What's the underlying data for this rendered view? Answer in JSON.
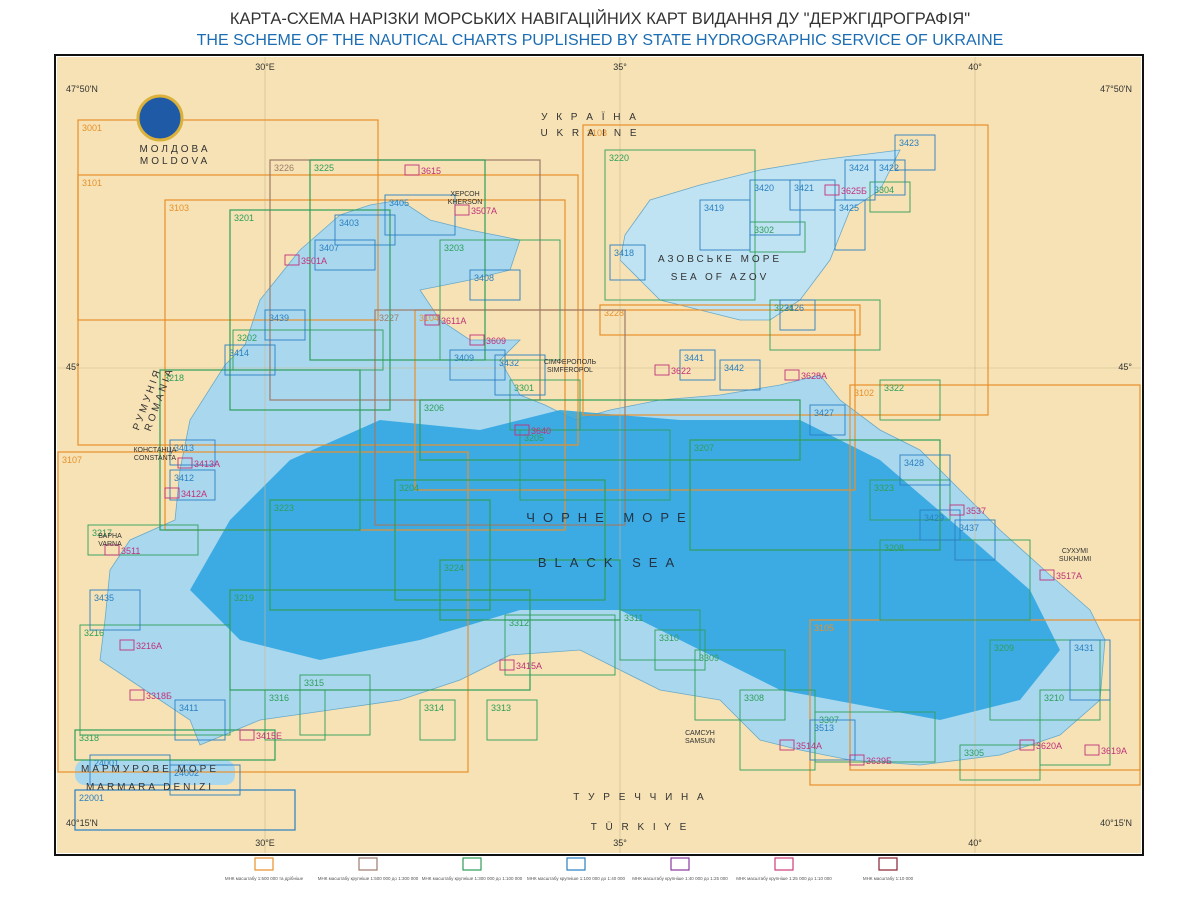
{
  "header": {
    "title_uk": "КАРТА-СХЕМА НАРІЗКИ МОРСЬКИХ НАВІГАЦІЙНИХ КАРТ ВИДАННЯ ДУ \"ДЕРЖГІДРОГРАФІЯ\"",
    "title_en": "THE SCHEME OF THE NAUTICAL CHARTS PUPLISHED BY STATE HYDROGRAPHIC SERVICE OF UKRAINE"
  },
  "map": {
    "longitudes_top": [
      "30°E",
      "35°",
      "40°"
    ],
    "longitudes_bottom": [
      "30°E",
      "35°",
      "40°"
    ],
    "latitudes_left": [
      "47°50'N",
      "45°",
      "40°15'N"
    ],
    "latitudes_right": [
      "47°50'N",
      "45°",
      "40°15'N"
    ],
    "places": [
      "У К Р А Ї Н А",
      "U K R A I N E",
      "МОЛДОВА",
      "MOLDOVA",
      "РУМУНІЯ",
      "ROMANIA",
      "ЧОРНЕ МОРЕ",
      "BLACK SEA",
      "АЗОВСЬКЕ МОРЕ",
      "SEA OF AZOV",
      "Т У Р Е Ч Ч И Н А",
      "T Ü R K I Y E",
      "МАРМУРОВЕ МОРЕ",
      "MARMARA DENIZI",
      "СІМФЕРОПОЛЬ",
      "SIMFEROPOL",
      "ХЕРСОН",
      "KHERSON",
      "САМСУН",
      "SAMSUN",
      "КОНСТАНЦА",
      "CONSTANTA",
      "ВАРНА",
      "VARNA",
      "СУХУМІ",
      "SUKHUMI"
    ],
    "charts": [
      {
        "number": "3001",
        "color": "#e8902a"
      },
      {
        "number": "3101",
        "color": "#e8902a"
      },
      {
        "number": "3103",
        "color": "#e8902a"
      },
      {
        "number": "3107",
        "color": "#e8902a"
      },
      {
        "number": "3108",
        "color": "#e8902a"
      },
      {
        "number": "3102",
        "color": "#e8902a"
      },
      {
        "number": "3105",
        "color": "#e8902a"
      },
      {
        "number": "3104",
        "color": "#e8902a"
      },
      {
        "number": "3228",
        "color": "#e8902a"
      },
      {
        "number": "3226",
        "color": "#9c7b6a"
      },
      {
        "number": "3227",
        "color": "#9c7b6a"
      },
      {
        "number": "3225",
        "color": "#2e9e5a"
      },
      {
        "number": "3201",
        "color": "#2e9e5a"
      },
      {
        "number": "3202",
        "color": "#2e9e5a"
      },
      {
        "number": "3203",
        "color": "#2e9e5a"
      },
      {
        "number": "3218",
        "color": "#2e9e5a"
      },
      {
        "number": "3220",
        "color": "#2e9e5a"
      },
      {
        "number": "3221",
        "color": "#2e9e5a"
      },
      {
        "number": "3206",
        "color": "#2e9e5a"
      },
      {
        "number": "3207",
        "color": "#2e9e5a"
      },
      {
        "number": "3204",
        "color": "#2e9e5a"
      },
      {
        "number": "3205",
        "color": "#2e9e5a"
      },
      {
        "number": "3223",
        "color": "#2e9e5a"
      },
      {
        "number": "3224",
        "color": "#2e9e5a"
      },
      {
        "number": "3208",
        "color": "#2e9e5a"
      },
      {
        "number": "3219",
        "color": "#2e9e5a"
      },
      {
        "number": "3217",
        "color": "#2e9e5a"
      },
      {
        "number": "3216",
        "color": "#2e9e5a"
      },
      {
        "number": "3318",
        "color": "#2e9e5a"
      },
      {
        "number": "3312",
        "color": "#2e9e5a"
      },
      {
        "number": "3311",
        "color": "#2e9e5a"
      },
      {
        "number": "3309",
        "color": "#2e9e5a"
      },
      {
        "number": "3308",
        "color": "#2e9e5a"
      },
      {
        "number": "3307",
        "color": "#2e9e5a"
      },
      {
        "number": "3209",
        "color": "#2e9e5a"
      },
      {
        "number": "3210",
        "color": "#2e9e5a"
      },
      {
        "number": "3305",
        "color": "#2e9e5a"
      },
      {
        "number": "3322",
        "color": "#2e9e5a"
      },
      {
        "number": "3323",
        "color": "#2e9e5a"
      },
      {
        "number": "3301",
        "color": "#2e9e5a"
      },
      {
        "number": "3302",
        "color": "#2e9e5a"
      },
      {
        "number": "3304",
        "color": "#2e9e5a"
      },
      {
        "number": "3313",
        "color": "#2e9e5a"
      },
      {
        "number": "3310",
        "color": "#2e9e5a"
      },
      {
        "number": "3314",
        "color": "#2e9e5a"
      },
      {
        "number": "3316",
        "color": "#2e9e5a"
      },
      {
        "number": "3315",
        "color": "#2e9e5a"
      },
      {
        "number": "3405",
        "color": "#2a7fc0"
      },
      {
        "number": "3403",
        "color": "#2a7fc0"
      },
      {
        "number": "3407",
        "color": "#2a7fc0"
      },
      {
        "number": "3408",
        "color": "#2a7fc0"
      },
      {
        "number": "3439",
        "color": "#2a7fc0"
      },
      {
        "number": "3414",
        "color": "#2a7fc0"
      },
      {
        "number": "3409",
        "color": "#2a7fc0"
      },
      {
        "number": "3432",
        "color": "#2a7fc0"
      },
      {
        "number": "3413",
        "color": "#2a7fc0"
      },
      {
        "number": "3412",
        "color": "#2a7fc0"
      },
      {
        "number": "3435",
        "color": "#2a7fc0"
      },
      {
        "number": "3411",
        "color": "#2a7fc0"
      },
      {
        "number": "3418",
        "color": "#2a7fc0"
      },
      {
        "number": "3419",
        "color": "#2a7fc0"
      },
      {
        "number": "3420",
        "color": "#2a7fc0"
      },
      {
        "number": "3421",
        "color": "#2a7fc0"
      },
      {
        "number": "3424",
        "color": "#2a7fc0"
      },
      {
        "number": "3422",
        "color": "#2a7fc0"
      },
      {
        "number": "3425",
        "color": "#2a7fc0"
      },
      {
        "number": "3423",
        "color": "#2a7fc0"
      },
      {
        "number": "3426",
        "color": "#2a7fc0"
      },
      {
        "number": "3441",
        "color": "#2a7fc0"
      },
      {
        "number": "3442",
        "color": "#2a7fc0"
      },
      {
        "number": "3427",
        "color": "#2a7fc0"
      },
      {
        "number": "3428",
        "color": "#2a7fc0"
      },
      {
        "number": "3429",
        "color": "#2a7fc0"
      },
      {
        "number": "3437",
        "color": "#2a7fc0"
      },
      {
        "number": "3431",
        "color": "#2a7fc0"
      },
      {
        "number": "3513",
        "color": "#2a7fc0"
      },
      {
        "number": "22001",
        "color": "#2a7fc0"
      },
      {
        "number": "24001",
        "color": "#2a7fc0"
      },
      {
        "number": "24002",
        "color": "#2a7fc0"
      },
      {
        "number": "3501А",
        "color": "#c0307a"
      },
      {
        "number": "3615",
        "color": "#c0307a"
      },
      {
        "number": "3507А",
        "color": "#c0307a"
      },
      {
        "number": "3611А",
        "color": "#c0307a"
      },
      {
        "number": "3609",
        "color": "#c0307a"
      },
      {
        "number": "3625Б",
        "color": "#c0307a"
      },
      {
        "number": "3628А",
        "color": "#c0307a"
      },
      {
        "number": "3517А",
        "color": "#c0307a"
      },
      {
        "number": "3619А",
        "color": "#c0307a"
      },
      {
        "number": "3620А",
        "color": "#c0307a"
      },
      {
        "number": "3639Б",
        "color": "#c0307a"
      },
      {
        "number": "3514А",
        "color": "#c0307a"
      },
      {
        "number": "3415А",
        "color": "#c0307a"
      },
      {
        "number": "3415Е",
        "color": "#c0307a"
      },
      {
        "number": "3318Б",
        "color": "#c0307a"
      },
      {
        "number": "3216А",
        "color": "#c0307a"
      },
      {
        "number": "3511",
        "color": "#c0307a"
      },
      {
        "number": "3413А",
        "color": "#c0307a"
      },
      {
        "number": "3412А",
        "color": "#c0307a"
      },
      {
        "number": "3537",
        "color": "#c0307a"
      },
      {
        "number": "3622",
        "color": "#c0307a"
      },
      {
        "number": "3640",
        "color": "#c0307a"
      }
    ]
  },
  "legend": [
    {
      "label": "МНК масштабу 1:500 000 та дрібніше",
      "color": "#e8902a"
    },
    {
      "label": "МНК масштабу крупніше 1:500 000 до 1:300 000",
      "color": "#9c7b6a"
    },
    {
      "label": "МНК масштабу крупніше 1:300 000 до 1:100 000",
      "color": "#2e9e5a"
    },
    {
      "label": "МНК масштабу крупніше 1:100 000 до 1:40 000",
      "color": "#2a7fc0"
    },
    {
      "label": "МНК масштабу крупніше 1:40 000 до 1:25 000",
      "color": "#8a3aa0"
    },
    {
      "label": "МНК масштабу крупніше 1:25 000 до 1:10 000",
      "color": "#d03a7a"
    },
    {
      "label": "МНК масштабу 1:10 000",
      "color": "#8a2030"
    }
  ]
}
